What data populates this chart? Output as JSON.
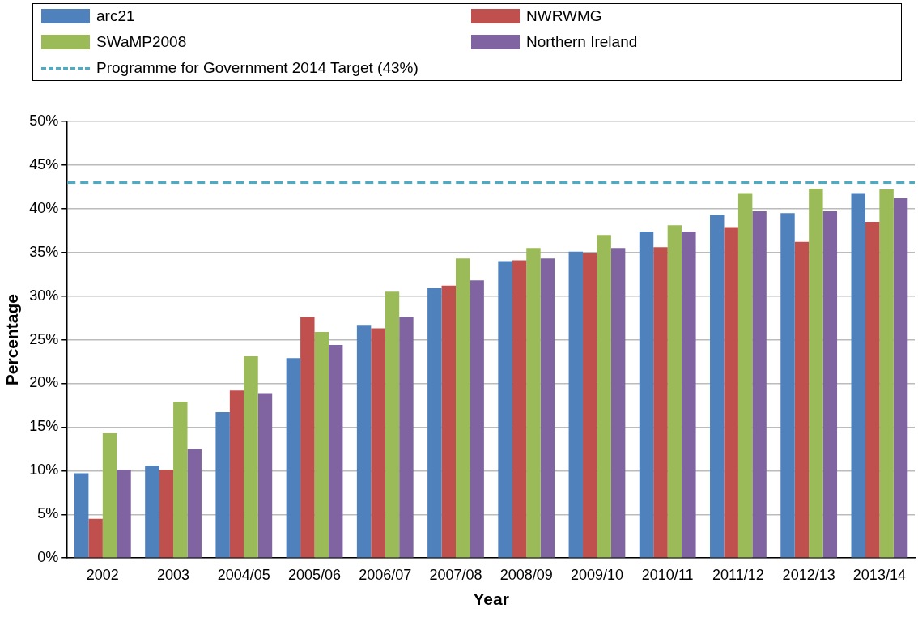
{
  "chart_data": {
    "type": "bar",
    "xlabel": "Year",
    "ylabel": "Percentage",
    "categories": [
      "2002",
      "2003",
      "2004/05",
      "2005/06",
      "2006/07",
      "2007/08",
      "2008/09",
      "2009/10",
      "2010/11",
      "2011/12",
      "2012/13",
      "2013/14"
    ],
    "series": [
      {
        "name": "arc21",
        "color": "#4f81bd",
        "values": [
          9.7,
          10.6,
          16.7,
          22.9,
          26.7,
          30.9,
          34.0,
          35.1,
          37.4,
          39.3,
          39.5,
          41.8
        ]
      },
      {
        "name": "NWRWMG",
        "color": "#c0504d",
        "values": [
          4.5,
          10.1,
          19.2,
          27.6,
          26.3,
          31.2,
          34.1,
          34.9,
          35.6,
          37.9,
          36.2,
          38.5
        ]
      },
      {
        "name": "SWaMP2008",
        "color": "#9bbb59",
        "values": [
          14.3,
          17.9,
          23.1,
          25.9,
          30.5,
          34.3,
          35.5,
          37.0,
          38.1,
          41.8,
          42.3,
          42.2
        ]
      },
      {
        "name": "Northern Ireland",
        "color": "#8064a2",
        "values": [
          10.1,
          12.5,
          18.9,
          24.4,
          27.6,
          31.8,
          34.3,
          35.5,
          37.4,
          39.7,
          39.7,
          41.2
        ]
      }
    ],
    "ylim": [
      0,
      50
    ],
    "yticks": [
      {
        "value": 0,
        "label": "0%"
      },
      {
        "value": 5,
        "label": "5%"
      },
      {
        "value": 10,
        "label": "10%"
      },
      {
        "value": 15,
        "label": "15%"
      },
      {
        "value": 20,
        "label": "20%"
      },
      {
        "value": 25,
        "label": "25%"
      },
      {
        "value": 30,
        "label": "30%"
      },
      {
        "value": 35,
        "label": "35%"
      },
      {
        "value": 40,
        "label": "40%"
      },
      {
        "value": 45,
        "label": "45%"
      },
      {
        "value": 50,
        "label": "50%"
      }
    ],
    "ref_lines": [
      {
        "axis": "y",
        "value": 43,
        "label": "Programme for Government 2014 Target (43%)",
        "color": "#4bacc6",
        "line_style": "dashed"
      }
    ],
    "grid": "y",
    "legend": "top"
  }
}
